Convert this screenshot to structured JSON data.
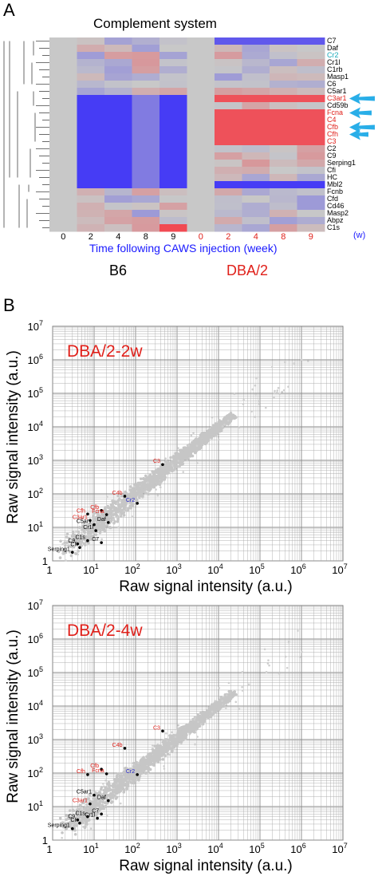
{
  "panel_a": {
    "letter": "A",
    "title": "Complement system",
    "genes": [
      {
        "name": "C7",
        "color": "#000000"
      },
      {
        "name": "Daf",
        "color": "#000000"
      },
      {
        "name": "Cr2",
        "color": "#17a8b8"
      },
      {
        "name": "Cr1l",
        "color": "#000000"
      },
      {
        "name": "C1rb",
        "color": "#000000"
      },
      {
        "name": "Masp1",
        "color": "#000000"
      },
      {
        "name": "C6",
        "color": "#000000"
      },
      {
        "name": "C5ar1",
        "color": "#000000"
      },
      {
        "name": "C3ar1",
        "color": "#e0201a"
      },
      {
        "name": "Cd59b",
        "color": "#000000"
      },
      {
        "name": "Fcna",
        "color": "#e0201a"
      },
      {
        "name": "C4",
        "color": "#e0201a"
      },
      {
        "name": "Cfb",
        "color": "#e0201a"
      },
      {
        "name": "Cfh",
        "color": "#e0201a"
      },
      {
        "name": "C3",
        "color": "#e0201a"
      },
      {
        "name": "C2",
        "color": "#000000"
      },
      {
        "name": "C9",
        "color": "#000000"
      },
      {
        "name": "Serping1",
        "color": "#000000"
      },
      {
        "name": "Cfi",
        "color": "#000000"
      },
      {
        "name": "HC",
        "color": "#000000"
      },
      {
        "name": "Mbl2",
        "color": "#000000"
      },
      {
        "name": "Fcnb",
        "color": "#000000"
      },
      {
        "name": "Cfd",
        "color": "#000000"
      },
      {
        "name": "Cd46",
        "color": "#000000"
      },
      {
        "name": "Masp2",
        "color": "#000000"
      },
      {
        "name": "Abpz",
        "color": "#000000"
      },
      {
        "name": "C1s",
        "color": "#000000"
      }
    ],
    "columns": [
      {
        "label": "0",
        "color": "#000000"
      },
      {
        "label": "2",
        "color": "#000000"
      },
      {
        "label": "4",
        "color": "#000000"
      },
      {
        "label": "8",
        "color": "#000000"
      },
      {
        "label": "9",
        "color": "#000000"
      },
      {
        "label": "0",
        "color": "#e0201a"
      },
      {
        "label": "2",
        "color": "#e0201a"
      },
      {
        "label": "4",
        "color": "#e0201a"
      },
      {
        "label": "8",
        "color": "#e0201a"
      },
      {
        "label": "9",
        "color": "#e0201a"
      }
    ],
    "unit_label": "(w)",
    "x_label": "Time following CAWS injection (week)",
    "group_b6": "B6",
    "group_dba": "DBA/2",
    "arrow_color": "#29aee8"
  },
  "panel_b": {
    "letter": "B",
    "axis_label": "Raw signal intensity (a.u.)",
    "tick_labels": [
      "1",
      "10",
      "10",
      "10",
      "10",
      "10",
      "10",
      "10"
    ],
    "tick_exponents": [
      "",
      "1",
      "2",
      "3",
      "4",
      "5",
      "6",
      "7"
    ]
  },
  "chart_data": [
    {
      "type": "scatter",
      "title": "DBA/2-2w",
      "xlabel": "Raw signal intensity (a.u.)",
      "ylabel": "Raw signal intensity (a.u.)",
      "xlim": [
        1,
        10000000
      ],
      "ylim": [
        1,
        10000000
      ],
      "xscale": "log",
      "yscale": "log",
      "grid": true,
      "points": [
        {
          "label": "C3",
          "x": 450,
          "y": 750,
          "color": "#e0201a"
        },
        {
          "label": "C4b",
          "x": 55,
          "y": 85,
          "color": "#e0201a"
        },
        {
          "label": "Cr2",
          "x": 110,
          "y": 52,
          "color": "#2a2acc"
        },
        {
          "label": "Cfb",
          "x": 15,
          "y": 32,
          "color": "#e0201a"
        },
        {
          "label": "Cfh",
          "x": 7,
          "y": 25,
          "color": "#e0201a"
        },
        {
          "label": "Fcna",
          "x": 20,
          "y": 24,
          "color": "#e0201a"
        },
        {
          "label": "C3ar1",
          "x": 8,
          "y": 16,
          "color": "#e0201a"
        },
        {
          "label": "C5ar1",
          "x": 10,
          "y": 12,
          "color": "#000000"
        },
        {
          "label": "Daf",
          "x": 22,
          "y": 14,
          "color": "#000000"
        },
        {
          "label": "Cr1l",
          "x": 11,
          "y": 8,
          "color": "#000000"
        },
        {
          "label": "C1s",
          "x": 7,
          "y": 4,
          "color": "#000000"
        },
        {
          "label": "C7",
          "x": 15,
          "y": 3.5,
          "color": "#000000"
        },
        {
          "label": "C9",
          "x": 4,
          "y": 3.2,
          "color": "#000000"
        },
        {
          "label": "Cfi",
          "x": 4.5,
          "y": 2.5,
          "color": "#000000"
        },
        {
          "label": "Serping1",
          "x": 3,
          "y": 1.8,
          "color": "#000000"
        }
      ]
    },
    {
      "type": "scatter",
      "title": "DBA/2-4w",
      "xlabel": "Raw signal intensity (a.u.)",
      "ylabel": "Raw signal intensity (a.u.)",
      "xlim": [
        1,
        10000000
      ],
      "ylim": [
        1,
        10000000
      ],
      "xscale": "log",
      "yscale": "log",
      "grid": true,
      "points": [
        {
          "label": "C3",
          "x": 450,
          "y": 1800,
          "color": "#e0201a"
        },
        {
          "label": "C4b",
          "x": 55,
          "y": 550,
          "color": "#e0201a"
        },
        {
          "label": "Cfb",
          "x": 15,
          "y": 130,
          "color": "#e0201a"
        },
        {
          "label": "Cfh",
          "x": 7,
          "y": 90,
          "color": "#e0201a"
        },
        {
          "label": "Fcna",
          "x": 20,
          "y": 95,
          "color": "#e0201a"
        },
        {
          "label": "Cr2",
          "x": 110,
          "y": 90,
          "color": "#2a2acc"
        },
        {
          "label": "C5ar1",
          "x": 10,
          "y": 22,
          "color": "#000000"
        },
        {
          "label": "Daf",
          "x": 22,
          "y": 15,
          "color": "#000000"
        },
        {
          "label": "C3ar1",
          "x": 8,
          "y": 12,
          "color": "#e0201a"
        },
        {
          "label": "C7",
          "x": 15,
          "y": 6,
          "color": "#000000"
        },
        {
          "label": "C1s",
          "x": 7,
          "y": 5,
          "color": "#000000"
        },
        {
          "label": "Cr1l",
          "x": 12,
          "y": 4.5,
          "color": "#000000"
        },
        {
          "label": "C9",
          "x": 4,
          "y": 4,
          "color": "#000000"
        },
        {
          "label": "Cfi",
          "x": 4.5,
          "y": 3.2,
          "color": "#000000"
        },
        {
          "label": "Serping1",
          "x": 3,
          "y": 2.2,
          "color": "#000000"
        }
      ]
    }
  ]
}
